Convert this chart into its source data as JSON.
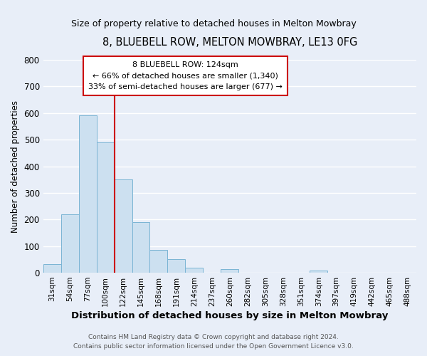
{
  "title": "8, BLUEBELL ROW, MELTON MOWBRAY, LE13 0FG",
  "subtitle": "Size of property relative to detached houses in Melton Mowbray",
  "xlabel": "Distribution of detached houses by size in Melton Mowbray",
  "ylabel": "Number of detached properties",
  "bin_labels": [
    "31sqm",
    "54sqm",
    "77sqm",
    "100sqm",
    "122sqm",
    "145sqm",
    "168sqm",
    "191sqm",
    "214sqm",
    "237sqm",
    "260sqm",
    "282sqm",
    "305sqm",
    "328sqm",
    "351sqm",
    "374sqm",
    "397sqm",
    "419sqm",
    "442sqm",
    "465sqm",
    "488sqm"
  ],
  "bar_values": [
    33,
    220,
    590,
    490,
    350,
    190,
    85,
    52,
    18,
    0,
    14,
    0,
    0,
    0,
    0,
    8,
    0,
    0,
    0,
    0,
    0
  ],
  "bar_color": "#cce0f0",
  "bar_edge_color": "#7ab4d4",
  "annotation_line1": "8 BLUEBELL ROW: 124sqm",
  "annotation_line2": "← 66% of detached houses are smaller (1,340)",
  "annotation_line3": "33% of semi-detached houses are larger (677) →",
  "vline_color": "#cc0000",
  "vline_x": 4.0,
  "ylim": [
    0,
    800
  ],
  "yticks": [
    0,
    100,
    200,
    300,
    400,
    500,
    600,
    700,
    800
  ],
  "footer1": "Contains HM Land Registry data © Crown copyright and database right 2024.",
  "footer2": "Contains public sector information licensed under the Open Government Licence v3.0.",
  "bg_color": "#e8eef8",
  "plot_bg_color": "#e8eef8"
}
